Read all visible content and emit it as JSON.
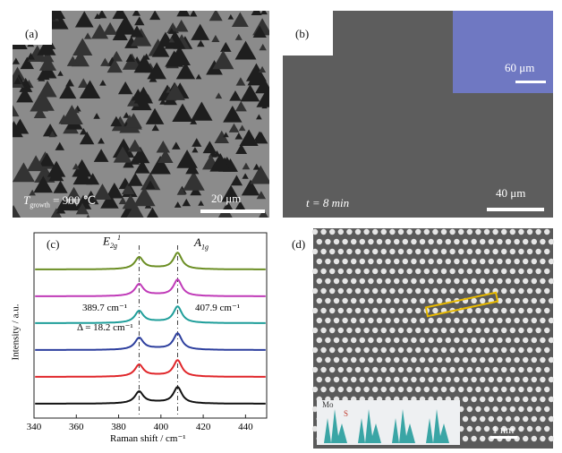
{
  "panel_a": {
    "label": "(a)",
    "temp_symbol": "T",
    "temp_subscript": "growth",
    "temp_value": " = 900 ℃",
    "scalebar": "20 μm"
  },
  "panel_b": {
    "label": "(b)",
    "time_label": "t = 8 min",
    "scalebar": "40 μm",
    "inset_scalebar": "60 μm",
    "inset_color": "#6f78c2"
  },
  "panel_c": {
    "label": "(c)",
    "peak_e_symbol": "E",
    "peak_e_sub": "2g",
    "peak_e_sup": "1",
    "peak_a_symbol": "A",
    "peak_a_sub": "1g",
    "annotation_left": "389.7 cm⁻¹",
    "annotation_right": "407.9 cm⁻¹",
    "annotation_delta": "Δ = 18.2 cm⁻¹"
  },
  "panel_d": {
    "label": "(d)",
    "inset_mo": "Mo",
    "inset_s": "S",
    "scalebar": "1 nm"
  },
  "chart_data": {
    "type": "line",
    "xlabel": "Raman shift / cm⁻¹",
    "ylabel": "Intensity / a.u.",
    "xlim": [
      340,
      450
    ],
    "xticks": [
      340,
      360,
      380,
      400,
      420,
      440
    ],
    "peaks": [
      389.7,
      407.9
    ],
    "series": [
      {
        "color": "#6b8e23",
        "offset": 5
      },
      {
        "color": "#c03ab8",
        "offset": 4
      },
      {
        "color": "#1f9e9a",
        "offset": 3
      },
      {
        "color": "#2d3f9e",
        "offset": 2
      },
      {
        "color": "#e0262a",
        "offset": 1
      },
      {
        "color": "#111111",
        "offset": 0
      }
    ]
  }
}
